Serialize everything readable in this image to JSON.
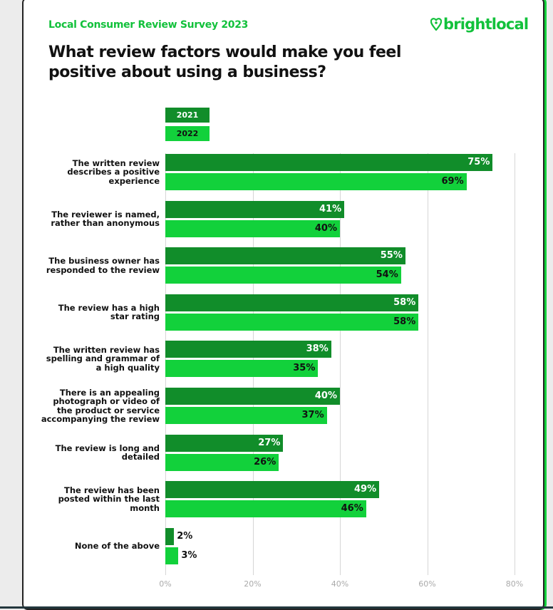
{
  "header": {
    "subtitle": "Local Consumer Review Survey 2023",
    "logo": "brightlocal",
    "title": "What review factors would make you feel positive about using a business?"
  },
  "colors": {
    "s2021": "#118d2a",
    "s2022": "#12d13b"
  },
  "chart_data": {
    "type": "bar",
    "orientation": "horizontal",
    "title": "What review factors would make you feel positive about using a business?",
    "categories": [
      "The written review describes a positive experience",
      "The reviewer is named, rather than anonymous",
      "The business owner has responded to the review",
      "The review has a high star rating",
      "The written review has spelling and grammar of a high quality",
      "There is an appealing photograph or video of the product or service accompanying the review",
      "The review is long and detailed",
      "The review has been posted within the last month",
      "None of the above"
    ],
    "series": [
      {
        "name": "2021",
        "values": [
          75,
          41,
          55,
          58,
          38,
          40,
          27,
          49,
          2
        ]
      },
      {
        "name": "2022",
        "values": [
          69,
          40,
          54,
          58,
          35,
          37,
          26,
          46,
          3
        ]
      }
    ],
    "xlim": [
      0,
      80
    ],
    "xticks": [
      "0%",
      "20%",
      "40%",
      "60%",
      "80%"
    ],
    "grid": true,
    "legend": "top-left"
  }
}
